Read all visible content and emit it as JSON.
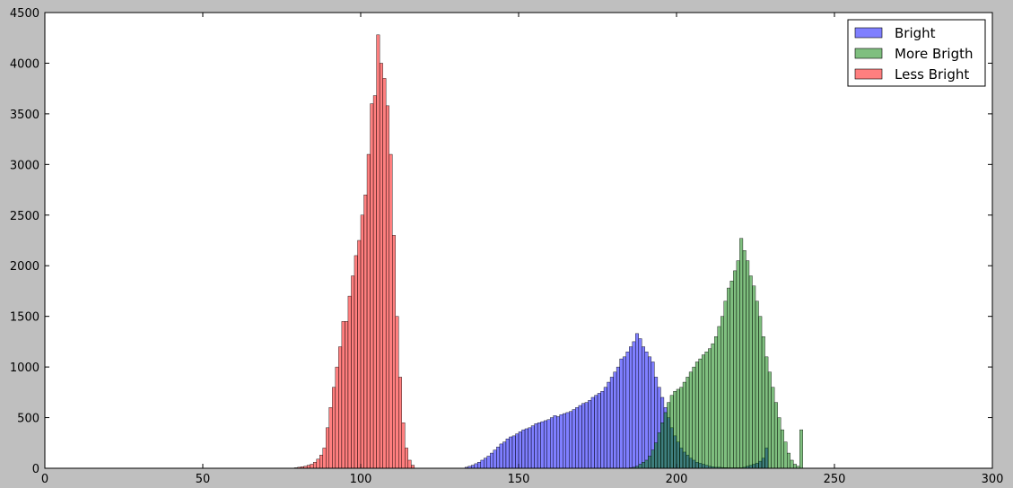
{
  "chart_data": {
    "type": "bar",
    "title": "",
    "xlabel": "",
    "ylabel": "",
    "xlim": [
      0,
      300
    ],
    "ylim": [
      0,
      4500
    ],
    "xticks": [
      0,
      50,
      100,
      150,
      200,
      250,
      300
    ],
    "yticks": [
      0,
      500,
      1000,
      1500,
      2000,
      2500,
      3000,
      3500,
      4000,
      4500
    ],
    "xtick_labels": [
      "0",
      "50",
      "100",
      "150",
      "200",
      "250",
      "300"
    ],
    "ytick_labels": [
      "0",
      "500",
      "1000",
      "1500",
      "2000",
      "2500",
      "3000",
      "3500",
      "4000",
      "4500"
    ],
    "bin_width": 1,
    "grid": false,
    "legend_position": "top-right",
    "series": [
      {
        "name": "Bright",
        "color": "#0000ff",
        "start": 133,
        "values": [
          10,
          20,
          30,
          45,
          60,
          80,
          100,
          120,
          150,
          180,
          210,
          240,
          260,
          290,
          310,
          320,
          340,
          360,
          380,
          390,
          400,
          420,
          440,
          450,
          460,
          470,
          480,
          500,
          520,
          510,
          530,
          540,
          550,
          560,
          580,
          600,
          620,
          640,
          650,
          670,
          700,
          720,
          740,
          760,
          800,
          850,
          900,
          950,
          1000,
          1080,
          1100,
          1150,
          1200,
          1250,
          1330,
          1280,
          1200,
          1150,
          1100,
          1050,
          900,
          800,
          700,
          600,
          500,
          400,
          320,
          260,
          200,
          160,
          130,
          100,
          80,
          60,
          50,
          40,
          30,
          20,
          15,
          10,
          10,
          8,
          6,
          5,
          5,
          5,
          5,
          5,
          10,
          20,
          30,
          40,
          50,
          70,
          100,
          200
        ]
      },
      {
        "name": "More Brigth",
        "color": "#008000",
        "start": 185,
        "values": [
          5,
          10,
          20,
          40,
          60,
          80,
          120,
          180,
          250,
          350,
          450,
          550,
          650,
          720,
          760,
          780,
          800,
          850,
          900,
          950,
          1000,
          1050,
          1080,
          1120,
          1150,
          1180,
          1230,
          1300,
          1400,
          1500,
          1650,
          1780,
          1850,
          1950,
          2050,
          2270,
          2150,
          2050,
          1900,
          1800,
          1650,
          1500,
          1300,
          1100,
          950,
          800,
          650,
          500,
          380,
          260,
          150,
          80,
          40,
          20,
          380
        ]
      },
      {
        "name": "Less Bright",
        "color": "#ff0000",
        "start": 79,
        "values": [
          5,
          10,
          15,
          20,
          30,
          40,
          60,
          90,
          130,
          200,
          400,
          600,
          800,
          1000,
          1200,
          1450,
          1450,
          1700,
          1900,
          2100,
          2250,
          2500,
          2700,
          3100,
          3600,
          3680,
          4280,
          4000,
          3850,
          3580,
          3100,
          2300,
          1500,
          900,
          450,
          200,
          80,
          30
        ]
      }
    ]
  }
}
